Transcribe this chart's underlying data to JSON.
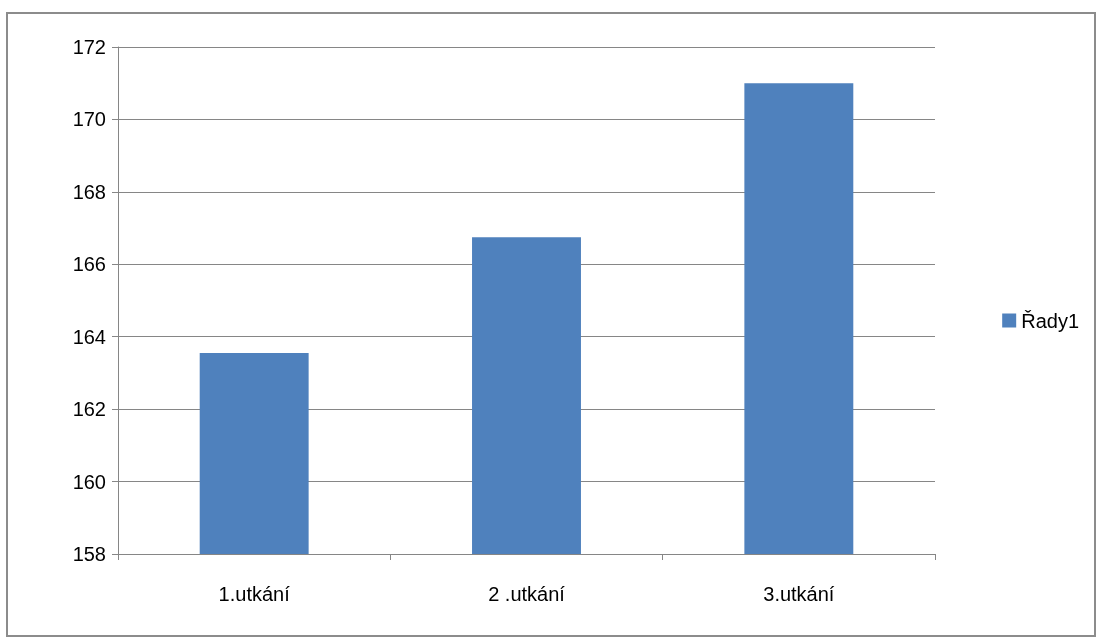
{
  "chart_data": {
    "type": "bar",
    "categories": [
      "1.utkání",
      "2 .utkání",
      "3.utkání"
    ],
    "series": [
      {
        "name": "Řady1",
        "color": "#4f81bd",
        "values": [
          163.55,
          166.75,
          171.0
        ]
      }
    ],
    "ylim": [
      158,
      172
    ],
    "yticks": [
      158,
      160,
      162,
      164,
      166,
      168,
      170,
      172
    ],
    "grid": "y",
    "legend": "right"
  }
}
